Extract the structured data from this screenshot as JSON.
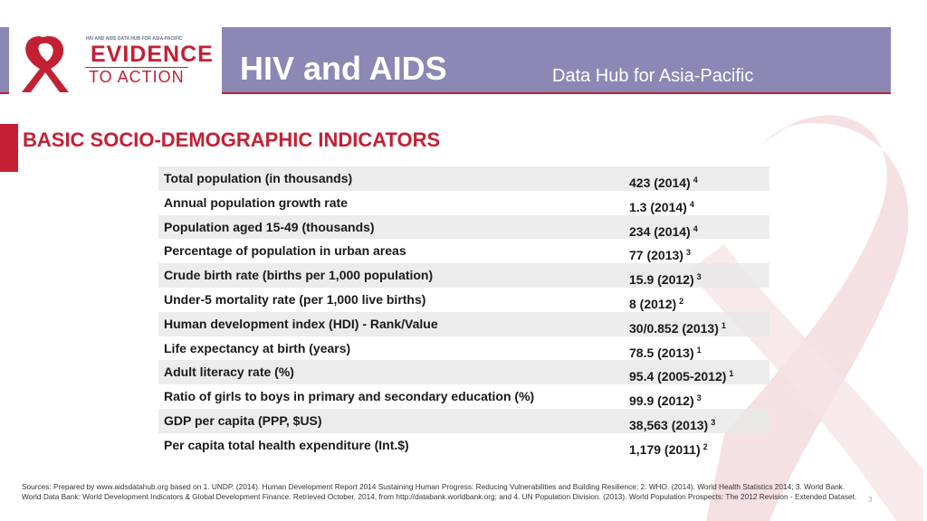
{
  "header": {
    "logo_tagline": "HIV AND AIDS DATA HUB FOR ASIA-PACIFIC",
    "logo_line1": "EVIDENCE",
    "logo_line2": "TO ACTION",
    "title": "HIV and AIDS",
    "subtitle": "Data Hub for Asia-Pacific"
  },
  "section_title": "BASIC SOCIO-DEMOGRAPHIC INDICATORS",
  "rows": [
    {
      "label": "Total population (in thousands)",
      "value": "423 (2014)",
      "ref": "4"
    },
    {
      "label": "Annual population growth rate",
      "value": "1.3 (2014)",
      "ref": "4"
    },
    {
      "label": "Population aged 15-49 (thousands)",
      "value": "234 (2014)",
      "ref": "4"
    },
    {
      "label": "Percentage of population in urban areas",
      "value": "77 (2013)",
      "ref": "3"
    },
    {
      "label": "Crude birth rate (births per 1,000 population)",
      "value": "15.9 (2012)",
      "ref": "3"
    },
    {
      "label": "Under-5 mortality rate (per 1,000 live births)",
      "value": "8 (2012)",
      "ref": "2"
    },
    {
      "label": "Human development index (HDI) - Rank/Value",
      "value": "30/0.852 (2013)",
      "ref": "1"
    },
    {
      "label": "Life expectancy at birth (years)",
      "value": "78.5 (2013)",
      "ref": "1"
    },
    {
      "label": "Adult literacy rate (%)",
      "value": "95.4 (2005-2012)",
      "ref": "1"
    },
    {
      "label": "Ratio of girls to boys in primary and secondary education (%)",
      "value": "99.9 (2012)",
      "ref": "3"
    },
    {
      "label": "GDP per capita (PPP, $US)",
      "value": "38,563 (2013)",
      "ref": "3"
    },
    {
      "label": "Per capita total health expenditure (Int.$)",
      "value": "1,179 (2011)",
      "ref": "2"
    }
  ],
  "footer": {
    "sources": "Sources: Prepared by www.aidsdatahub.org based on 1. UNDP. (2014). Human Development Report 2014 Sustaining Human Progress: Reducing Vulnerabilities and Building Resilience; 2. WHO. (2014). World Health Statistics 2014; 3. World Bank. World Data Bank: World Development Indicators & Global Development Finance. Retrieved October, 2014, from http://databank.worldbank.org; and 4. UN Population Division. (2013). World Population Prospects: The 2012 Revision - Extended Dataset.",
    "page_number": "3"
  },
  "colors": {
    "header_bg": "#8b88b5",
    "accent_red": "#c42034"
  }
}
